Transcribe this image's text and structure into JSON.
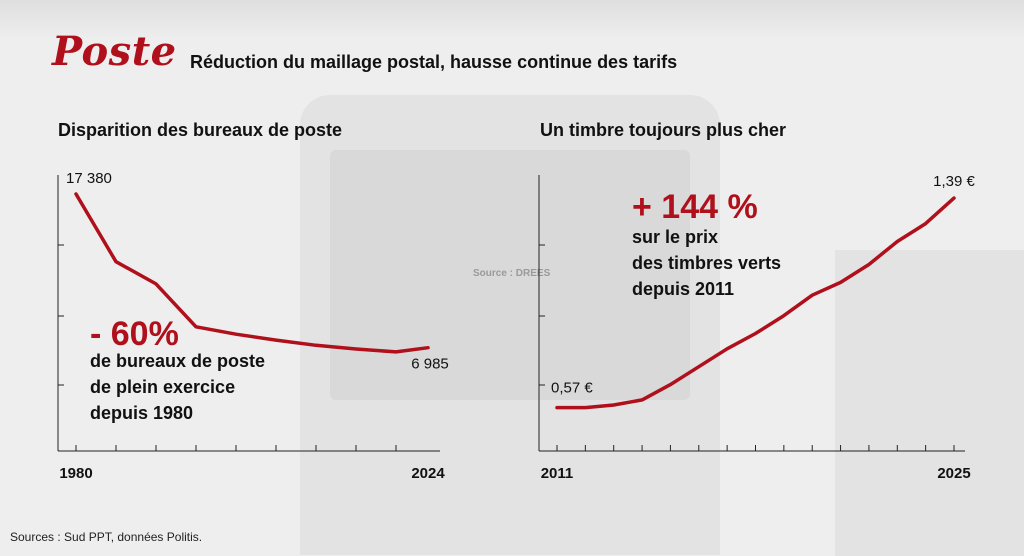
{
  "header": {
    "title": "Poste",
    "subtitle": "Réduction du maillage postal, hausse continue des tarifs"
  },
  "colors": {
    "accent": "#b0101b",
    "text": "#111111",
    "axis": "#222222"
  },
  "chart_data": [
    {
      "type": "line",
      "title": "Disparition des bureaux de poste",
      "x": [
        1980,
        1985,
        1990,
        1995,
        2000,
        2005,
        2010,
        2015,
        2020,
        2024
      ],
      "series": [
        {
          "values": [
            17380,
            12800,
            11300,
            8400,
            7900,
            7500,
            7150,
            6900,
            6700,
            6985
          ]
        }
      ],
      "x_tick_labels": [
        "1980",
        "2024"
      ],
      "point_labels": {
        "first": "17 380",
        "last": "6 985"
      },
      "annotation": {
        "big": "- 60%",
        "lines": [
          "de bureaux de poste",
          "de plein exercice",
          "depuis 1980"
        ]
      },
      "xlim": [
        1980,
        2024
      ],
      "ylim": [
        0,
        19000
      ],
      "grid": false
    },
    {
      "type": "line",
      "title": "Un timbre toujours plus cher",
      "x": [
        2011,
        2012,
        2013,
        2014,
        2015,
        2016,
        2017,
        2018,
        2019,
        2020,
        2021,
        2022,
        2023,
        2024,
        2025
      ],
      "series": [
        {
          "values": [
            0.57,
            0.57,
            0.58,
            0.6,
            0.66,
            0.73,
            0.8,
            0.86,
            0.93,
            1.01,
            1.06,
            1.13,
            1.22,
            1.29,
            1.39
          ]
        }
      ],
      "x_tick_labels": [
        "2011",
        "2025"
      ],
      "point_labels": {
        "first": "0,57 €",
        "last": "1,39 €"
      },
      "annotation": {
        "big": "+ 144 %",
        "lines": [
          "sur le prix",
          "des timbres verts",
          "depuis 2011"
        ]
      },
      "xlim": [
        2011,
        2025
      ],
      "ylim": [
        0.4,
        1.5
      ],
      "grid": false
    }
  ],
  "source": "Sources : Sud PPT, données Politis.",
  "background": {
    "watermark": "Source : DREES"
  }
}
